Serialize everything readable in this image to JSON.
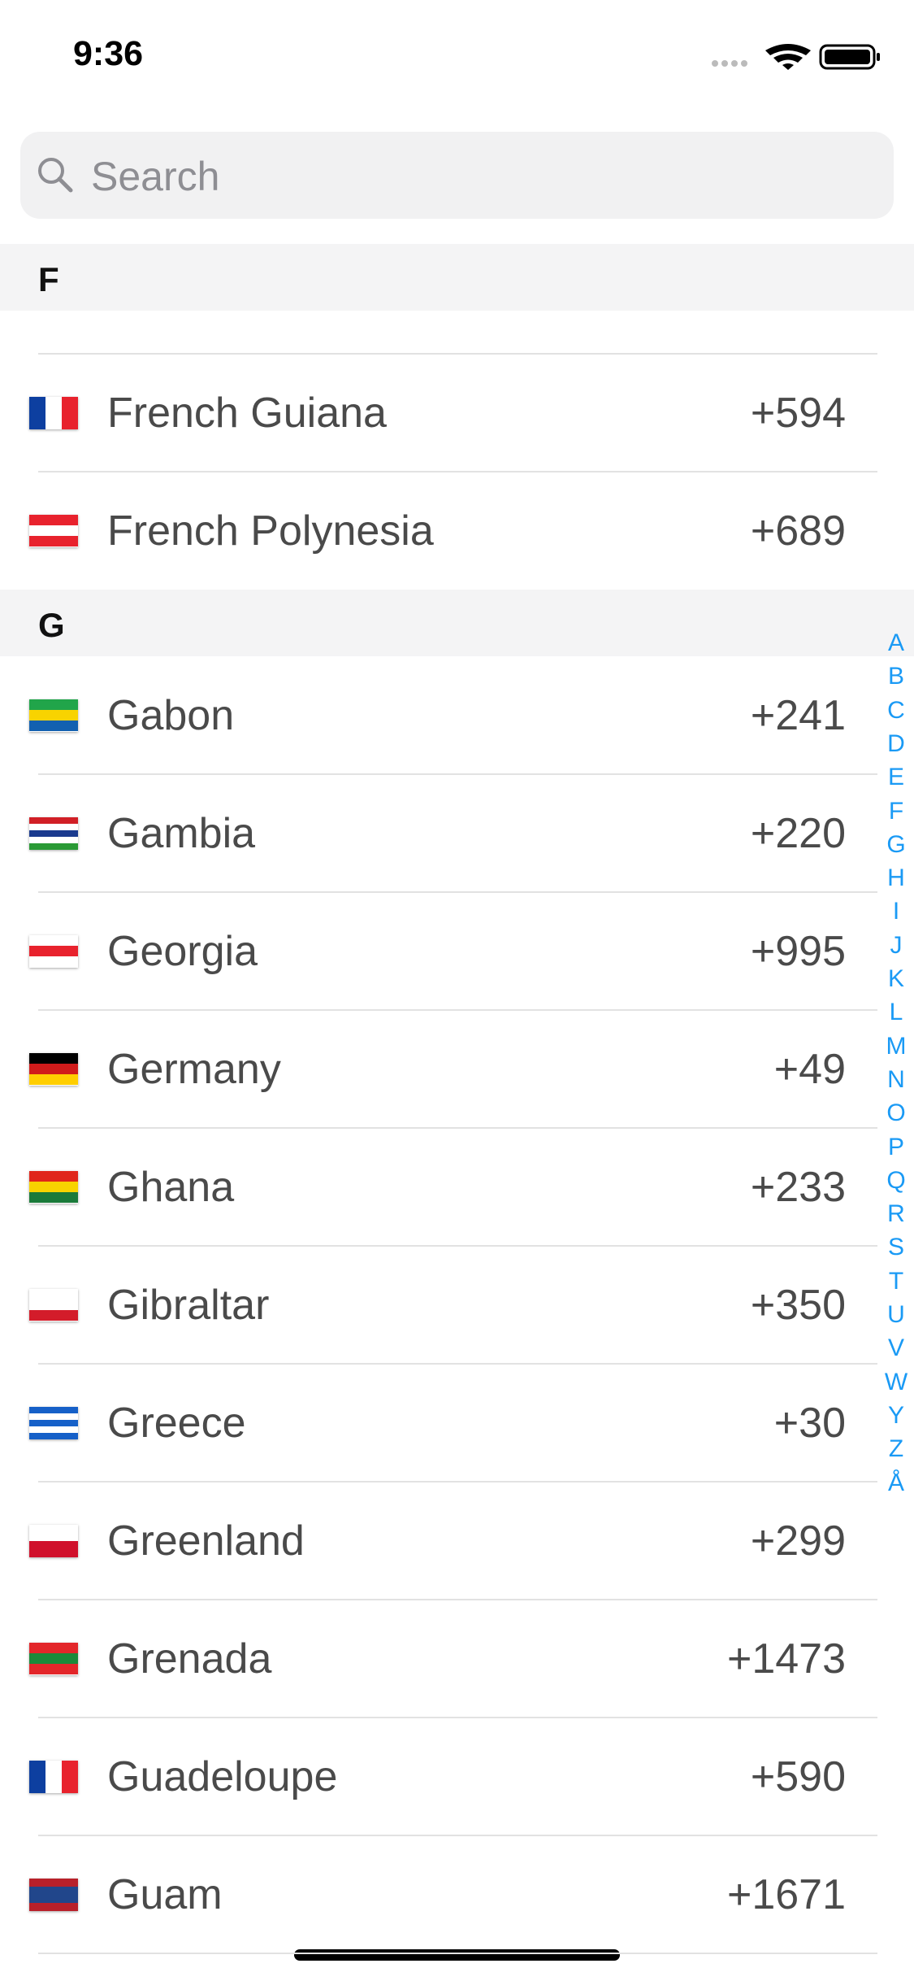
{
  "status_bar": {
    "time": "9:36"
  },
  "search": {
    "placeholder": "Search"
  },
  "sections": [
    {
      "title": "F",
      "rows": [
        {
          "name": "French Guiana",
          "code": "+594"
        },
        {
          "name": "French Polynesia",
          "code": "+689"
        }
      ]
    },
    {
      "title": "G",
      "rows": [
        {
          "name": "Gabon",
          "code": "+241"
        },
        {
          "name": "Gambia",
          "code": "+220"
        },
        {
          "name": "Georgia",
          "code": "+995"
        },
        {
          "name": "Germany",
          "code": "+49"
        },
        {
          "name": "Ghana",
          "code": "+233"
        },
        {
          "name": "Gibraltar",
          "code": "+350"
        },
        {
          "name": "Greece",
          "code": "+30"
        },
        {
          "name": "Greenland",
          "code": "+299"
        },
        {
          "name": "Grenada",
          "code": "+1473"
        },
        {
          "name": "Guadeloupe",
          "code": "+590"
        },
        {
          "name": "Guam",
          "code": "+1671"
        }
      ]
    }
  ],
  "index": [
    "A",
    "B",
    "C",
    "D",
    "E",
    "F",
    "G",
    "H",
    "I",
    "J",
    "K",
    "L",
    "M",
    "N",
    "O",
    "P",
    "Q",
    "R",
    "S",
    "T",
    "U",
    "V",
    "W",
    "Y",
    "Z",
    "Å"
  ]
}
